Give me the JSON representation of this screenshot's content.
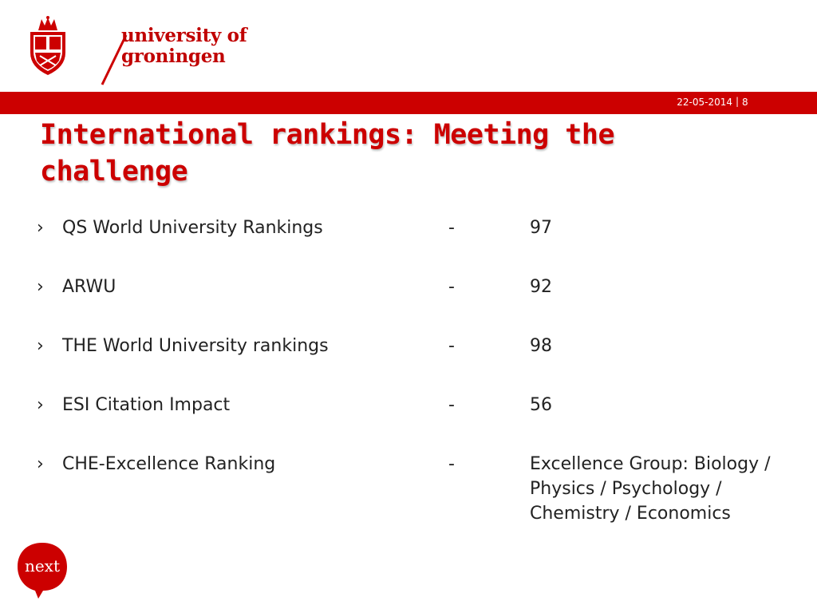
{
  "header": {
    "logo_line1": "university of",
    "logo_line2": "groningen",
    "date": "22-05-2014",
    "separator": "|",
    "page": "8"
  },
  "slide": {
    "title": "International rankings: Meeting the challenge",
    "rankings": [
      {
        "bullet": "›",
        "label": "QS World University Rankings",
        "dash": "-",
        "value": "97"
      },
      {
        "bullet": "›",
        "label": "ARWU",
        "dash": "-",
        "value": "92"
      },
      {
        "bullet": "›",
        "label": "THE World University rankings",
        "dash": "-",
        "value": "98"
      },
      {
        "bullet": "›",
        "label": "ESI Citation Impact",
        "dash": "-",
        "value": "56"
      },
      {
        "bullet": "›",
        "label": "CHE-Excellence Ranking",
        "dash": "-",
        "value": "Excellence Group: Biology / Physics / Psychology / Chemistry / Economics"
      }
    ]
  },
  "footer": {
    "next_logo_text": "next"
  },
  "colors": {
    "brand_red": "#cc0000"
  }
}
